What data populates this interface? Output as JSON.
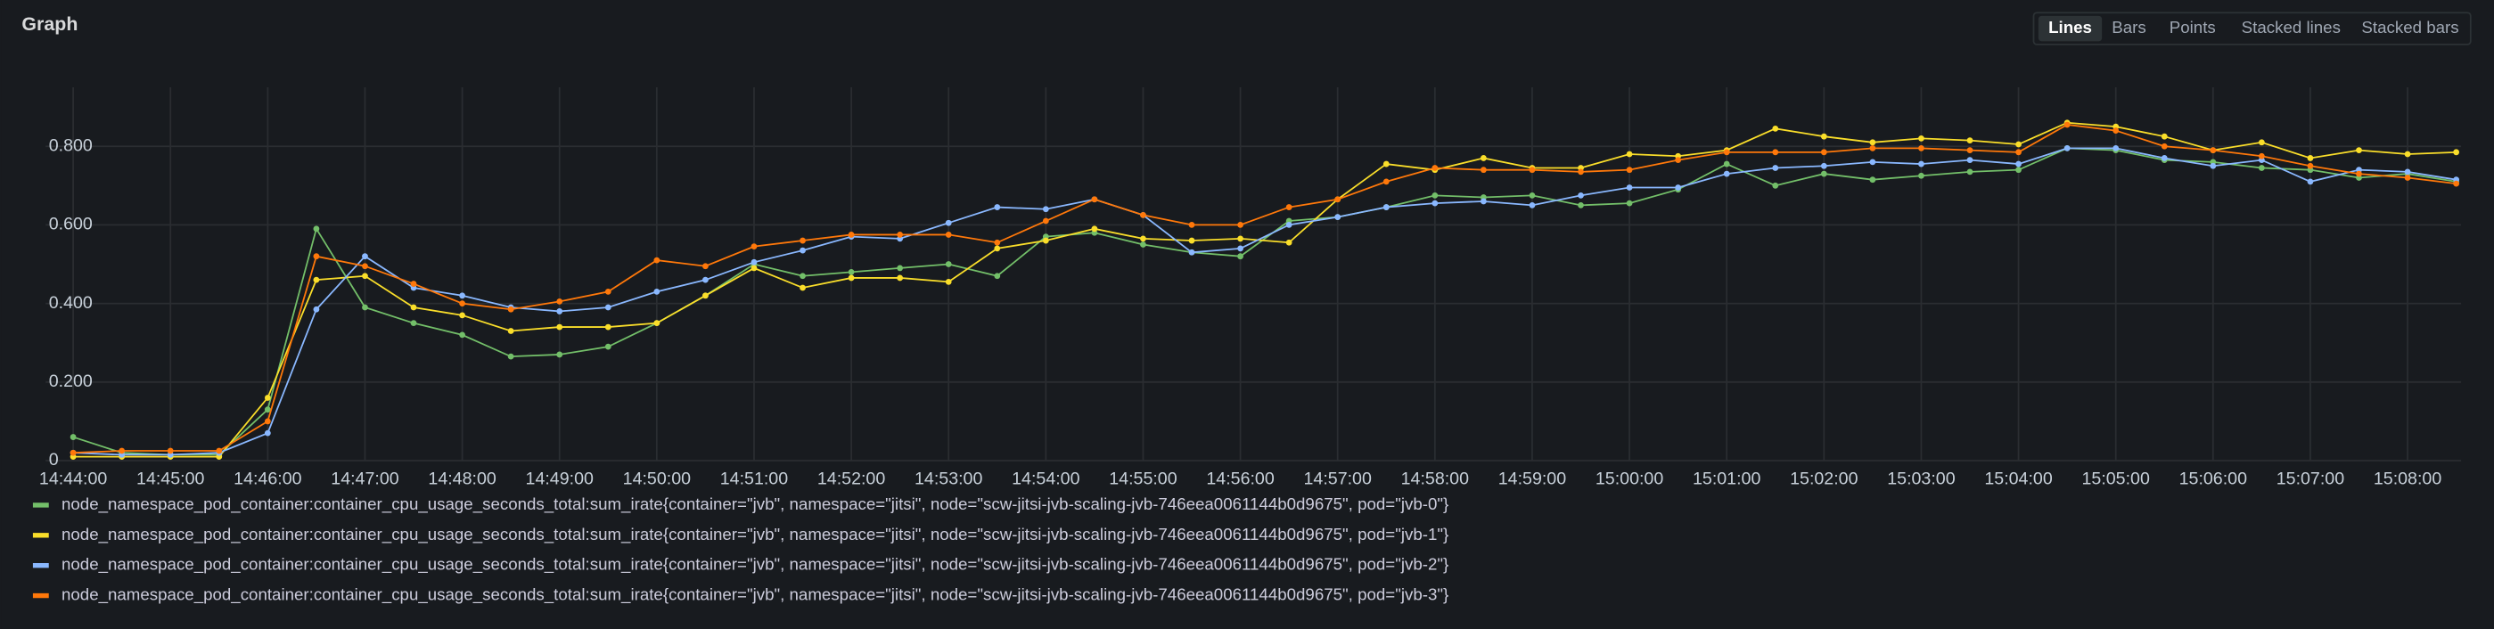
{
  "chart_data": {
    "type": "line",
    "title": "Graph",
    "modes": [
      "Lines",
      "Bars",
      "Points",
      "Stacked lines",
      "Stacked bars"
    ],
    "selected_mode": "Lines",
    "grid": true,
    "legend": "bottom",
    "x": [
      "14:44:00",
      "14:44:30",
      "14:45:00",
      "14:45:30",
      "14:46:00",
      "14:46:30",
      "14:47:00",
      "14:47:30",
      "14:48:00",
      "14:48:30",
      "14:49:00",
      "14:49:30",
      "14:50:00",
      "14:50:30",
      "14:51:00",
      "14:51:30",
      "14:52:00",
      "14:52:30",
      "14:53:00",
      "14:53:30",
      "14:54:00",
      "14:54:30",
      "14:55:00",
      "14:55:30",
      "14:56:00",
      "14:56:30",
      "14:57:00",
      "14:57:30",
      "14:58:00",
      "14:58:30",
      "14:59:00",
      "14:59:30",
      "15:00:00",
      "15:00:30",
      "15:01:00",
      "15:01:30",
      "15:02:00",
      "15:02:30",
      "15:03:00",
      "15:03:30",
      "15:04:00",
      "15:04:30",
      "15:05:00",
      "15:05:30",
      "15:06:00",
      "15:06:30",
      "15:07:00",
      "15:07:30",
      "15:08:00",
      "15:08:30"
    ],
    "xlim": [
      "14:43:43",
      "15:08:33"
    ],
    "xticks": [
      "14:44:00",
      "14:45:00",
      "14:46:00",
      "14:47:00",
      "14:48:00",
      "14:49:00",
      "14:50:00",
      "14:51:00",
      "14:52:00",
      "14:53:00",
      "14:54:00",
      "14:55:00",
      "14:56:00",
      "14:57:00",
      "14:58:00",
      "14:59:00",
      "15:00:00",
      "15:01:00",
      "15:02:00",
      "15:03:00",
      "15:04:00",
      "15:05:00",
      "15:06:00",
      "15:07:00",
      "15:08:00"
    ],
    "ylim": [
      0,
      0.95
    ],
    "yticks": [
      0,
      {
        "value": 0.2,
        "label": "0.200"
      },
      {
        "value": 0.4,
        "label": "0.400"
      },
      {
        "value": 0.6,
        "label": "0.600"
      },
      {
        "value": 0.8,
        "label": "0.800"
      }
    ],
    "series": [
      {
        "name": "node_namespace_pod_container:container_cpu_usage_seconds_total:sum_irate{container=\"jvb\", namespace=\"jitsi\", node=\"scw-jitsi-jvb-scaling-jvb-746eea0061144b0d9675\", pod=\"jvb-0\"}",
        "color": "#73bf69",
        "values": [
          0.06,
          0.02,
          0.015,
          0.015,
          0.13,
          0.59,
          0.39,
          0.35,
          0.32,
          0.265,
          0.27,
          0.29,
          0.35,
          0.42,
          0.5,
          0.47,
          0.48,
          0.49,
          0.5,
          0.47,
          0.57,
          0.58,
          0.55,
          0.53,
          0.52,
          0.61,
          0.62,
          0.645,
          0.675,
          0.67,
          0.675,
          0.65,
          0.655,
          0.69,
          0.755,
          0.7,
          0.73,
          0.715,
          0.725,
          0.735,
          0.74,
          0.795,
          0.79,
          0.765,
          0.76,
          0.745,
          0.74,
          0.72,
          0.73,
          0.71
        ]
      },
      {
        "name": "node_namespace_pod_container:container_cpu_usage_seconds_total:sum_irate{container=\"jvb\", namespace=\"jitsi\", node=\"scw-jitsi-jvb-scaling-jvb-746eea0061144b0d9675\", pod=\"jvb-1\"}",
        "color": "#fade2a",
        "values": [
          0.01,
          0.01,
          0.01,
          0.01,
          0.16,
          0.46,
          0.47,
          0.39,
          0.37,
          0.33,
          0.34,
          0.34,
          0.35,
          0.42,
          0.49,
          0.44,
          0.465,
          0.465,
          0.455,
          0.54,
          0.56,
          0.59,
          0.565,
          0.56,
          0.565,
          0.555,
          0.665,
          0.755,
          0.74,
          0.77,
          0.745,
          0.745,
          0.78,
          0.775,
          0.79,
          0.845,
          0.825,
          0.81,
          0.82,
          0.815,
          0.805,
          0.86,
          0.85,
          0.825,
          0.79,
          0.81,
          0.77,
          0.79,
          0.78,
          0.785
        ]
      },
      {
        "name": "node_namespace_pod_container:container_cpu_usage_seconds_total:sum_irate{container=\"jvb\", namespace=\"jitsi\", node=\"scw-jitsi-jvb-scaling-jvb-746eea0061144b0d9675\", pod=\"jvb-2\"}",
        "color": "#8ab8ff",
        "values": [
          0.02,
          0.015,
          0.015,
          0.02,
          0.07,
          0.385,
          0.52,
          0.44,
          0.42,
          0.39,
          0.38,
          0.39,
          0.43,
          0.46,
          0.505,
          0.535,
          0.57,
          0.565,
          0.605,
          0.645,
          0.64,
          0.665,
          0.625,
          0.53,
          0.54,
          0.6,
          0.62,
          0.645,
          0.655,
          0.66,
          0.65,
          0.675,
          0.695,
          0.695,
          0.73,
          0.745,
          0.75,
          0.76,
          0.755,
          0.765,
          0.755,
          0.795,
          0.795,
          0.77,
          0.75,
          0.765,
          0.71,
          0.74,
          0.735,
          0.715
        ]
      },
      {
        "name": "node_namespace_pod_container:container_cpu_usage_seconds_total:sum_irate{container=\"jvb\", namespace=\"jitsi\", node=\"scw-jitsi-jvb-scaling-jvb-746eea0061144b0d9675\", pod=\"jvb-3\"}",
        "color": "#ff780a",
        "values": [
          0.02,
          0.025,
          0.025,
          0.025,
          0.1,
          0.52,
          0.495,
          0.45,
          0.4,
          0.385,
          0.405,
          0.43,
          0.51,
          0.495,
          0.545,
          0.56,
          0.575,
          0.575,
          0.575,
          0.555,
          0.61,
          0.665,
          0.625,
          0.6,
          0.6,
          0.645,
          0.665,
          0.71,
          0.745,
          0.74,
          0.74,
          0.735,
          0.74,
          0.765,
          0.785,
          0.785,
          0.785,
          0.795,
          0.795,
          0.79,
          0.785,
          0.855,
          0.84,
          0.8,
          0.79,
          0.775,
          0.75,
          0.73,
          0.72,
          0.705
        ]
      }
    ]
  }
}
